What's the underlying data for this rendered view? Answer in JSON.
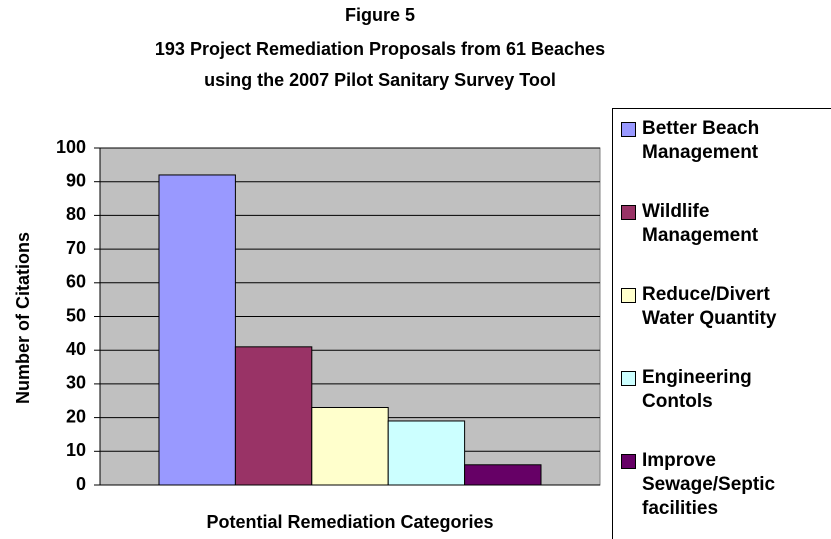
{
  "chart_data": {
    "type": "bar",
    "title": "Figure 5",
    "subtitle": [
      "193 Project Remediation Proposals from 61 Beaches",
      "using the 2007 Pilot Sanitary Survey Tool"
    ],
    "y_label": "Number of Citations",
    "x_label": "Potential Remediation Categories",
    "categories": [
      null
    ],
    "series": [
      {
        "name": "Better Beach Management",
        "color": "#9999ff",
        "values": [
          92
        ]
      },
      {
        "name": "Wildlife Management",
        "color": "#993366",
        "values": [
          41
        ]
      },
      {
        "name": "Reduce/Divert Water Quantity",
        "color": "#ffffcc",
        "values": [
          23
        ]
      },
      {
        "name": "Engineering Contols",
        "color": "#ccffff",
        "values": [
          19
        ]
      },
      {
        "name": "Improve Sewage/Septic facilities",
        "color": "#660066",
        "values": [
          6
        ]
      }
    ],
    "ylim": [
      0,
      100
    ],
    "yticks": [
      0,
      10,
      20,
      30,
      40,
      50,
      60,
      70,
      80,
      90,
      100
    ],
    "grid": true,
    "legend": "right"
  }
}
